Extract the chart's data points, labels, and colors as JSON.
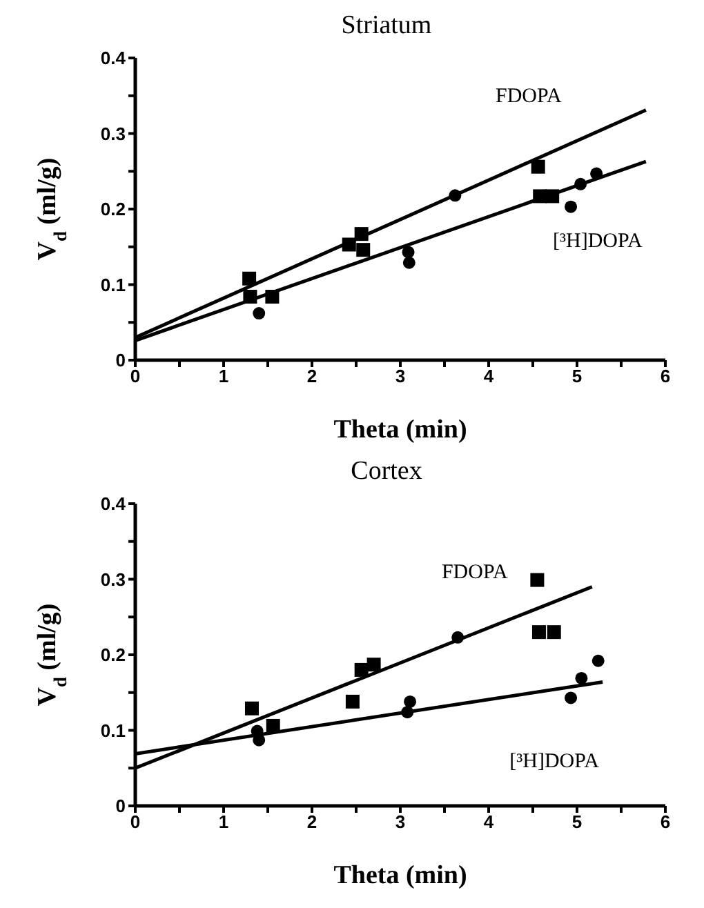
{
  "chart_data": [
    {
      "type": "scatter",
      "title": "Striatum",
      "xlabel": "Theta (min)",
      "ylabel": "V$_{d}$ (ml/g)",
      "xlim": [
        0,
        6
      ],
      "ylim": [
        0,
        0.4
      ],
      "xticks": [
        0,
        {
          "value": 0.5,
          "label": null
        },
        1,
        {
          "value": 1.5,
          "label": null
        },
        2,
        {
          "value": 2.5,
          "label": null
        },
        3,
        {
          "value": 3.5,
          "label": null
        },
        4,
        {
          "value": 4.5,
          "label": null
        },
        5,
        {
          "value": 5.5,
          "label": null
        },
        6
      ],
      "yticks": [
        0,
        {
          "value": 0.05,
          "label": null
        },
        0.1,
        {
          "value": 0.15,
          "label": null
        },
        0.2,
        {
          "value": 0.25,
          "label": null
        },
        0.3,
        {
          "value": 0.35,
          "label": null
        },
        0.4
      ],
      "grid": false,
      "legend": false,
      "series": [
        {
          "marker": "square",
          "color": "#000000",
          "x": [
            1.29,
            1.3,
            1.55,
            2.42,
            2.56,
            2.58,
            4.56,
            4.58,
            4.72
          ],
          "values": [
            0.108,
            0.084,
            0.084,
            0.153,
            0.167,
            0.146,
            0.256,
            0.217,
            0.217
          ]
        },
        {
          "marker": "circle",
          "color": "#000000",
          "x": [
            1.4,
            3.09,
            3.1,
            3.62,
            4.93,
            5.04,
            5.22
          ],
          "values": [
            0.062,
            0.143,
            0.129,
            0.218,
            0.203,
            0.233,
            0.247
          ]
        },
        {
          "type": "line",
          "name": "FDOPA",
          "marker": "none",
          "line_style": "solid",
          "color": "#000000",
          "x": [
            0,
            5.78
          ],
          "values": [
            0.03,
            0.331
          ]
        },
        {
          "type": "line",
          "name": "[³H]DOPA",
          "marker": "none",
          "line_style": "solid",
          "color": "#000000",
          "x": [
            0,
            5.78
          ],
          "values": [
            0.026,
            0.263
          ]
        }
      ]
    },
    {
      "type": "scatter",
      "title": "Cortex",
      "xlabel": "Theta (min)",
      "ylabel": "V$_{d}$ (ml/g)",
      "xlim": [
        0,
        6
      ],
      "ylim": [
        0,
        0.4
      ],
      "xticks": [
        0,
        {
          "value": 0.5,
          "label": null
        },
        1,
        {
          "value": 1.5,
          "label": null
        },
        2,
        {
          "value": 2.5,
          "label": null
        },
        3,
        {
          "value": 3.5,
          "label": null
        },
        4,
        {
          "value": 4.5,
          "label": null
        },
        5,
        {
          "value": 5.5,
          "label": null
        },
        6
      ],
      "yticks": [
        0,
        {
          "value": 0.05,
          "label": null
        },
        0.1,
        {
          "value": 0.15,
          "label": null
        },
        0.2,
        {
          "value": 0.25,
          "label": null
        },
        0.3,
        {
          "value": 0.35,
          "label": null
        },
        0.4
      ],
      "grid": false,
      "legend": false,
      "series": [
        {
          "marker": "square",
          "color": "#000000",
          "x": [
            1.32,
            1.56,
            2.46,
            2.56,
            2.7,
            4.55,
            4.57,
            4.74
          ],
          "values": [
            0.129,
            0.106,
            0.138,
            0.18,
            0.187,
            0.299,
            0.23,
            0.23
          ]
        },
        {
          "marker": "circle",
          "color": "#000000",
          "x": [
            1.4,
            1.38,
            3.11,
            3.08,
            3.65,
            4.93,
            5.05,
            5.24
          ],
          "values": [
            0.087,
            0.099,
            0.138,
            0.124,
            0.223,
            0.143,
            0.169,
            0.192
          ]
        },
        {
          "type": "line",
          "name": "FDOPA",
          "marker": "none",
          "line_style": "solid",
          "color": "#000000",
          "x": [
            0,
            5.17
          ],
          "values": [
            0.05,
            0.29
          ]
        },
        {
          "type": "line",
          "name": "[³H]DOPA",
          "marker": "none",
          "line_style": "solid",
          "color": "#000000",
          "x": [
            0,
            5.29
          ],
          "values": [
            0.069,
            0.164
          ]
        }
      ]
    }
  ]
}
